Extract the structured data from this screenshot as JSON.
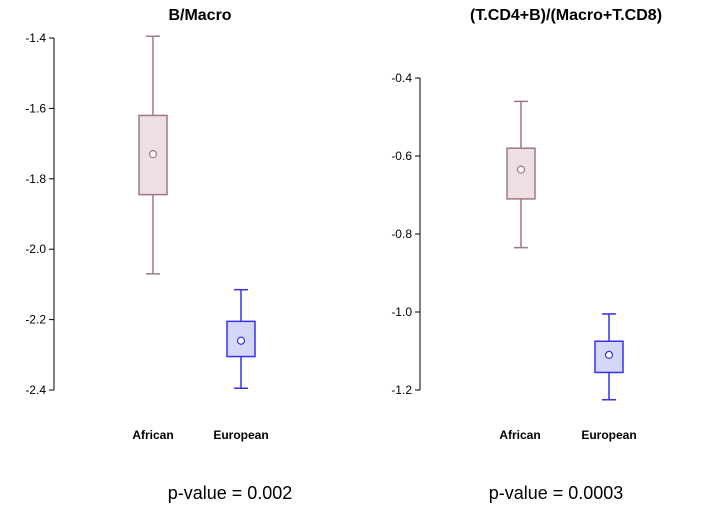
{
  "chart_data": [
    {
      "type": "box",
      "title": "B/Macro",
      "categories": [
        "African",
        "European"
      ],
      "ylim": [
        -2.4,
        -1.4
      ],
      "yticks": [
        -1.4,
        -1.6,
        -1.8,
        -2.0,
        -2.2,
        -2.4
      ],
      "ytick_labels": [
        "-1.4",
        "-1.6",
        "-1.8",
        "-2.0",
        "-2.2",
        "-2.4"
      ],
      "boxes": [
        {
          "category": "African",
          "min": -2.07,
          "q1": -1.845,
          "median": -1.73,
          "q3": -1.62,
          "max": -1.395,
          "color": "#a07880",
          "fill": "#ede0e3"
        },
        {
          "category": "European",
          "min": -2.395,
          "q1": -2.305,
          "median": -2.26,
          "q3": -2.205,
          "max": -2.115,
          "color": "#3333ee",
          "fill": "#d6d6fb"
        }
      ],
      "annotation": "p-value = 0.002"
    },
    {
      "type": "box",
      "title": "(T.CD4+B)/(Macro+T.CD8)",
      "categories": [
        "African",
        "European"
      ],
      "ylim": [
        -1.2,
        -0.4
      ],
      "yticks": [
        -0.4,
        -0.6,
        -0.8,
        -1.0,
        -1.2
      ],
      "ytick_labels": [
        "-0.4",
        "-0.6",
        "-0.8",
        "-1.0",
        "-1.2"
      ],
      "boxes": [
        {
          "category": "African",
          "min": -0.835,
          "q1": -0.71,
          "median": -0.635,
          "q3": -0.58,
          "max": -0.46,
          "color": "#a07880",
          "fill": "#ede0e3"
        },
        {
          "category": "European",
          "min": -1.225,
          "q1": -1.155,
          "median": -1.11,
          "q3": -1.075,
          "max": -1.005,
          "color": "#3333ee",
          "fill": "#d6d6fb"
        }
      ],
      "annotation": "p-value = 0.0003"
    }
  ]
}
